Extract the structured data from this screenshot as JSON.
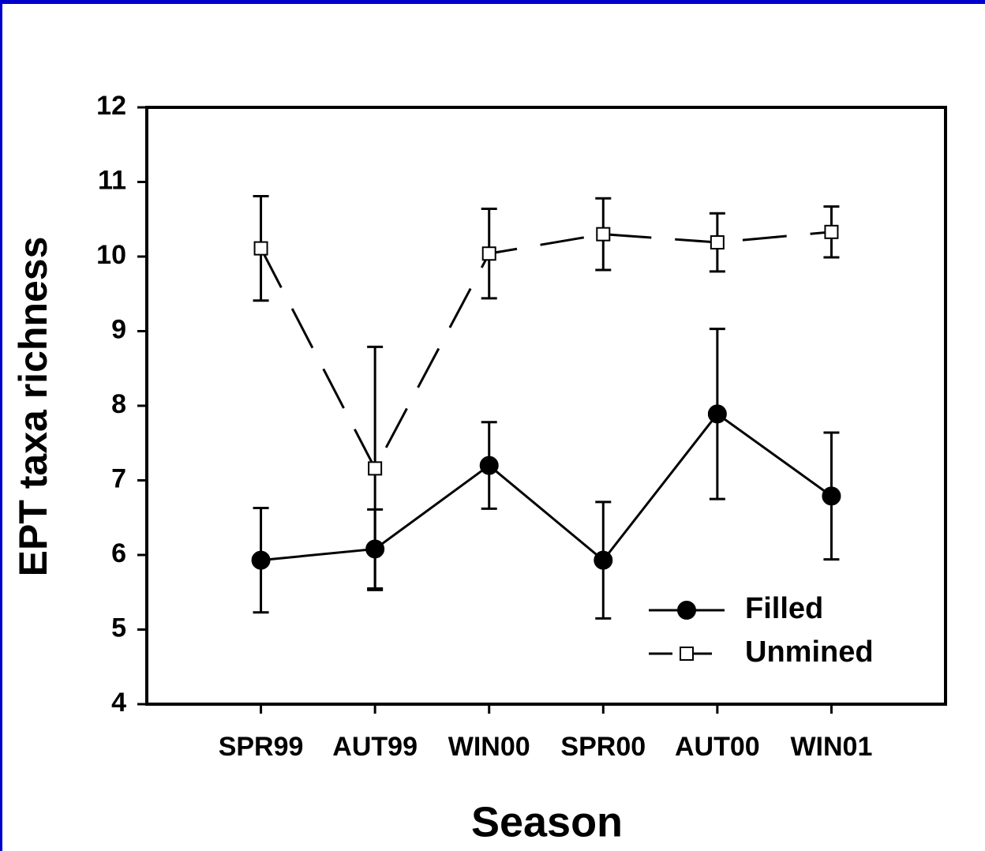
{
  "chart_data": {
    "type": "line",
    "xlabel": "Season",
    "ylabel": "EPT taxa richness",
    "categories": [
      "SPR99",
      "AUT99",
      "WIN00",
      "SPR00",
      "AUT00",
      "WIN01"
    ],
    "ylim": [
      4,
      12
    ],
    "yticks": [
      4,
      5,
      6,
      7,
      8,
      9,
      10,
      11,
      12
    ],
    "legend": "lower right",
    "series": [
      {
        "name": "Filled",
        "color": "#000000",
        "marker": "circle",
        "line_style": "solid",
        "values": [
          5.93,
          6.08,
          7.2,
          5.93,
          7.89,
          6.79
        ],
        "errors": [
          0.7,
          0.53,
          0.58,
          0.78,
          1.14,
          0.85
        ]
      },
      {
        "name": "Unmined",
        "color": "#000000",
        "marker": "square",
        "line_style": "dashed",
        "values": [
          10.11,
          7.16,
          10.04,
          10.3,
          10.19,
          10.33
        ],
        "errors": [
          0.7,
          1.63,
          0.6,
          0.48,
          0.39,
          0.34
        ]
      }
    ]
  }
}
